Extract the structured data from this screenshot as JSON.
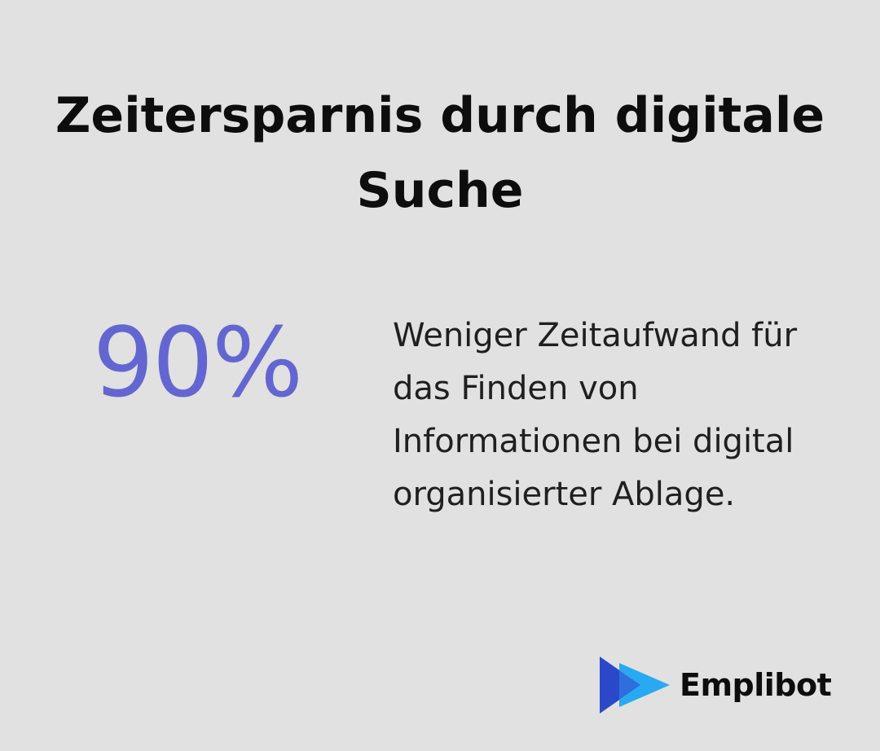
{
  "header": {
    "title": "Zeitersparnis durch digitale Suche"
  },
  "stat": {
    "value": "90%",
    "description": "Weniger Zeitaufwand für das Finden von Informationen bei digital organisierter Ablage.",
    "accent_color": "#6366d1"
  },
  "brand": {
    "name": "Emplibot",
    "icon": "play-arrow-logo-icon"
  },
  "colors": {
    "background": "#e0e1e0",
    "logo_dark_blue": "#2b48c9",
    "logo_light_blue": "#29a9f2"
  }
}
